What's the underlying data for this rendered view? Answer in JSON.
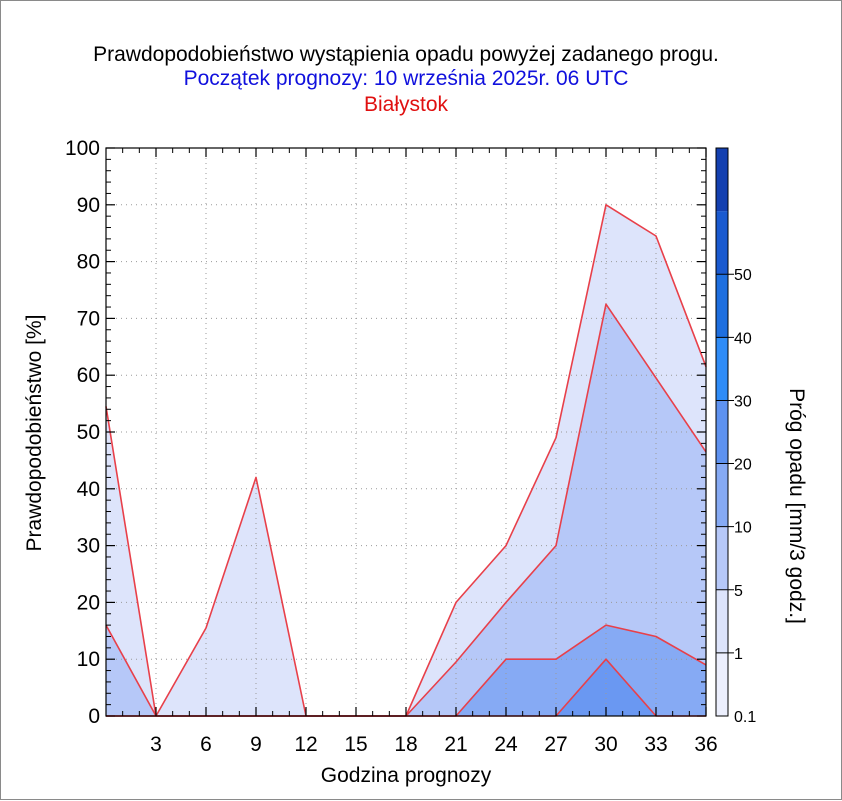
{
  "header": {
    "title": "Prawdopodobieństwo wystąpienia opadu powyżej zadanego progu.",
    "subtitle": "Początek prognozy: 10 września 2025r. 06 UTC",
    "location": "Białystok"
  },
  "colors": {
    "subtitle": "#1010dd",
    "location": "#e01010",
    "series_line": "#e8404a",
    "grid": "#9a9a9a"
  },
  "chart_data": {
    "type": "area",
    "title": "Prawdopodobieństwo wystąpienia opadu powyżej zadanego progu.",
    "xlabel": "Godzina prognozy",
    "ylabel": "Prawdopodobieństwo [%]",
    "xlim": [
      0,
      36
    ],
    "ylim": [
      0,
      100
    ],
    "x_ticks": [
      3,
      6,
      9,
      12,
      15,
      18,
      21,
      24,
      27,
      30,
      33,
      36
    ],
    "y_ticks": [
      0,
      10,
      20,
      30,
      40,
      50,
      60,
      70,
      80,
      90,
      100
    ],
    "x": [
      0,
      3,
      6,
      9,
      12,
      15,
      18,
      21,
      24,
      27,
      30,
      33,
      36
    ],
    "grid": true,
    "series": [
      {
        "name": "0.1",
        "color": "#dde4fb",
        "values": [
          54.5,
          0,
          15.5,
          42,
          0,
          0,
          0,
          20,
          30,
          49,
          90,
          84.5,
          61.5
        ]
      },
      {
        "name": "1",
        "color": "#b6c8f8",
        "values": [
          16,
          0,
          0,
          0,
          0,
          0,
          0,
          9.5,
          20,
          30,
          72.5,
          59.5,
          46.5
        ]
      },
      {
        "name": "5",
        "color": "#86aaf4",
        "values": [
          0,
          0,
          0,
          0,
          0,
          0,
          0,
          0,
          10,
          10,
          16,
          14,
          9
        ]
      },
      {
        "name": "10",
        "color": "#6a98f2",
        "values": [
          0,
          0,
          0,
          0,
          0,
          0,
          0,
          0,
          0,
          0,
          10,
          0,
          0
        ]
      }
    ],
    "colorbar": {
      "label": "Próg opadu [mm/3 godz.]",
      "tick_labels": [
        "0.1",
        "1",
        "5",
        "10",
        "20",
        "30",
        "40",
        "50"
      ],
      "colors": [
        "#eceffd",
        "#dde4fb",
        "#b6c8f8",
        "#86aaf4",
        "#5e92f0",
        "#2f8cf7",
        "#1e6fdf",
        "#1a5ad0",
        "#1440b0"
      ]
    }
  }
}
